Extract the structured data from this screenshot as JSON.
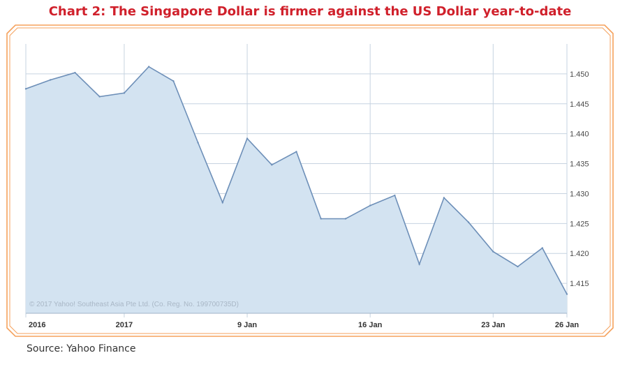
{
  "title": "Chart 2: The Singapore Dollar is firmer against the US Dollar year-to-date",
  "source": "Source: Yahoo Finance",
  "copyright": "© 2017 Yahoo! Southeast Asia Pte Ltd. (Co. Reg. No. 199700735D)",
  "colors": {
    "title": "#d0202b",
    "frame": "#f5a15c",
    "line": "#6d8fb8",
    "area": "#d3e3f1",
    "grid": "#c6d3e0"
  },
  "chart_data": {
    "type": "area",
    "ylim": [
      1.41,
      1.455
    ],
    "grid": true,
    "y_ticks": [
      "1.450",
      "1.445",
      "1.440",
      "1.435",
      "1.430",
      "1.425",
      "1.420",
      "1.415"
    ],
    "y_tick_values": [
      1.45,
      1.445,
      1.44,
      1.435,
      1.43,
      1.425,
      1.42,
      1.415
    ],
    "x_ticks": [
      "2016",
      "2017",
      "9 Jan",
      "16 Jan",
      "23 Jan",
      "26 Jan"
    ],
    "x_tick_index": [
      0,
      4,
      9,
      14,
      19,
      22
    ],
    "series": [
      {
        "values": [
          1.4475,
          1.449,
          1.4502,
          1.4462,
          1.4468,
          1.4512,
          1.4488,
          1.4385,
          1.4285,
          1.4392,
          1.4348,
          1.437,
          1.4258,
          1.4258,
          1.428,
          1.4297,
          1.4182,
          1.4293,
          1.4252,
          1.4203,
          1.4178,
          1.4209,
          1.4132
        ]
      }
    ]
  }
}
